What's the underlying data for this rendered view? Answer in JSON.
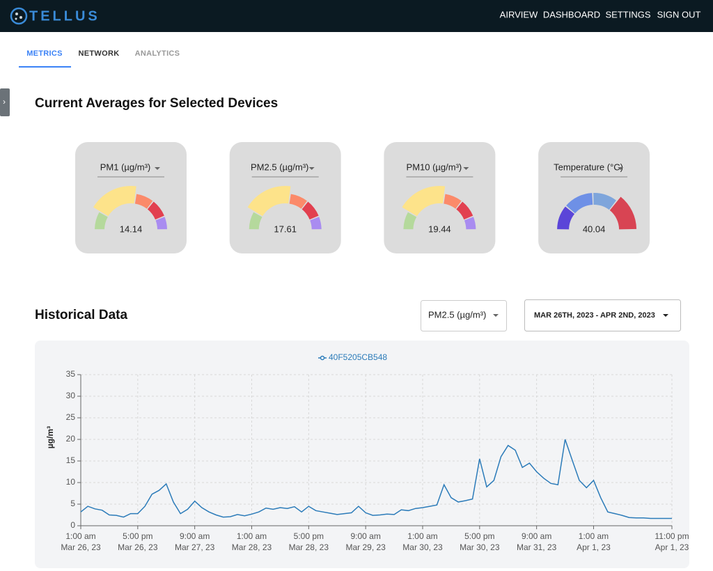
{
  "nav": {
    "logo": "TELLUS",
    "links": [
      "AIRVIEW",
      "DASHBOARD",
      "SETTINGS",
      "SIGN OUT"
    ]
  },
  "tabs": [
    "METRICS",
    "NETWORK",
    "ANALYTICS"
  ],
  "sidebar_toggle": "›",
  "current": {
    "title": "Current Averages for Selected Devices",
    "gauges": [
      {
        "label": "PM1 (µg/m³)",
        "value": 14.14
      },
      {
        "label": "PM2.5 (µg/m³)",
        "value": 17.61
      },
      {
        "label": "PM10 (µg/m³)",
        "value": 19.44
      },
      {
        "label": "Temperature (°C)",
        "value": 40.04
      }
    ]
  },
  "historical": {
    "title": "Historical Data",
    "metric_select": "PM2.5 (µg/m³)",
    "date_select": "MAR 26TH, 2023 - APR 2ND, 2023"
  },
  "chart_data": {
    "type": "line",
    "ylabel": "µg/m³",
    "grid": true,
    "xlim": [
      "2023-03-26T01:00",
      "2023-04-01T23:00"
    ],
    "ylim": [
      0,
      35
    ],
    "yticks": [
      0,
      5,
      10,
      15,
      20,
      25,
      30,
      35
    ],
    "xticks": [
      {
        "value": "2023-03-26T01:00",
        "label": [
          "1:00 am",
          "Mar 26, 23"
        ]
      },
      {
        "value": "2023-03-26T17:00",
        "label": [
          "5:00 pm",
          "Mar 26, 23"
        ]
      },
      {
        "value": "2023-03-27T09:00",
        "label": [
          "9:00 am",
          "Mar 27, 23"
        ]
      },
      {
        "value": "2023-03-28T01:00",
        "label": [
          "1:00 am",
          "Mar 28, 23"
        ]
      },
      {
        "value": "2023-03-28T17:00",
        "label": [
          "5:00 pm",
          "Mar 28, 23"
        ]
      },
      {
        "value": "2023-03-29T09:00",
        "label": [
          "9:00 am",
          "Mar 29, 23"
        ]
      },
      {
        "value": "2023-03-30T01:00",
        "label": [
          "1:00 am",
          "Mar 30, 23"
        ]
      },
      {
        "value": "2023-03-30T17:00",
        "label": [
          "5:00 pm",
          "Mar 30, 23"
        ]
      },
      {
        "value": "2023-03-31T09:00",
        "label": [
          "9:00 am",
          "Mar 31, 23"
        ]
      },
      {
        "value": "2023-04-01T01:00",
        "label": [
          "1:00 am",
          "Apr 1, 23"
        ]
      },
      {
        "value": "2023-04-01T23:00",
        "label": [
          "11:00 pm",
          "Apr 1, 23"
        ]
      }
    ],
    "x": [
      "2023-03-26T01:00",
      "2023-03-26T03:00",
      "2023-03-26T05:00",
      "2023-03-26T07:00",
      "2023-03-26T09:00",
      "2023-03-26T11:00",
      "2023-03-26T13:00",
      "2023-03-26T15:00",
      "2023-03-26T17:00",
      "2023-03-26T19:00",
      "2023-03-26T21:00",
      "2023-03-26T23:00",
      "2023-03-27T01:00",
      "2023-03-27T03:00",
      "2023-03-27T05:00",
      "2023-03-27T07:00",
      "2023-03-27T09:00",
      "2023-03-27T11:00",
      "2023-03-27T13:00",
      "2023-03-27T15:00",
      "2023-03-27T17:00",
      "2023-03-27T19:00",
      "2023-03-27T21:00",
      "2023-03-27T23:00",
      "2023-03-28T01:00",
      "2023-03-28T03:00",
      "2023-03-28T05:00",
      "2023-03-28T07:00",
      "2023-03-28T09:00",
      "2023-03-28T11:00",
      "2023-03-28T13:00",
      "2023-03-28T15:00",
      "2023-03-28T17:00",
      "2023-03-28T19:00",
      "2023-03-28T21:00",
      "2023-03-28T23:00",
      "2023-03-29T01:00",
      "2023-03-29T03:00",
      "2023-03-29T05:00",
      "2023-03-29T07:00",
      "2023-03-29T09:00",
      "2023-03-29T11:00",
      "2023-03-29T13:00",
      "2023-03-29T15:00",
      "2023-03-29T17:00",
      "2023-03-29T19:00",
      "2023-03-29T21:00",
      "2023-03-29T23:00",
      "2023-03-30T01:00",
      "2023-03-30T03:00",
      "2023-03-30T05:00",
      "2023-03-30T07:00",
      "2023-03-30T09:00",
      "2023-03-30T11:00",
      "2023-03-30T13:00",
      "2023-03-30T15:00",
      "2023-03-30T17:00",
      "2023-03-30T19:00",
      "2023-03-30T21:00",
      "2023-03-30T23:00",
      "2023-03-31T01:00",
      "2023-03-31T03:00",
      "2023-03-31T05:00",
      "2023-03-31T07:00",
      "2023-03-31T09:00",
      "2023-03-31T11:00",
      "2023-03-31T13:00",
      "2023-03-31T15:00",
      "2023-03-31T17:00",
      "2023-03-31T19:00",
      "2023-03-31T21:00",
      "2023-03-31T23:00",
      "2023-04-01T01:00",
      "2023-04-01T03:00",
      "2023-04-01T05:00",
      "2023-04-01T07:00",
      "2023-04-01T09:00",
      "2023-04-01T11:00",
      "2023-04-01T13:00",
      "2023-04-01T15:00",
      "2023-04-01T17:00",
      "2023-04-01T19:00",
      "2023-04-01T21:00",
      "2023-04-01T23:00"
    ],
    "series": [
      {
        "name": "40F5205CB548",
        "color": "#2b7bb9",
        "values": [
          3.2,
          4.5,
          3.9,
          3.6,
          2.5,
          2.4,
          2.0,
          2.8,
          2.8,
          4.5,
          7.3,
          8.2,
          9.7,
          5.5,
          2.8,
          3.8,
          5.7,
          4.2,
          3.2,
          2.5,
          2.0,
          2.1,
          2.6,
          2.3,
          2.7,
          3.2,
          4.1,
          3.8,
          4.2,
          4.0,
          4.4,
          3.2,
          4.5,
          3.5,
          3.2,
          2.9,
          2.6,
          2.8,
          3.0,
          4.5,
          3.0,
          2.4,
          2.5,
          2.7,
          2.6,
          3.7,
          3.5,
          4.0,
          4.2,
          4.5,
          4.8,
          9.5,
          6.5,
          5.5,
          5.8,
          6.2,
          15.5,
          9.0,
          10.5,
          16.0,
          18.6,
          17.5,
          13.5,
          14.5,
          12.5,
          11.0,
          9.8,
          9.5,
          20.0,
          15.2,
          10.5,
          8.8,
          10.5,
          6.5,
          3.2,
          2.8,
          2.4,
          1.9,
          1.8,
          1.8,
          1.7,
          1.7,
          1.7,
          1.7
        ]
      }
    ]
  }
}
